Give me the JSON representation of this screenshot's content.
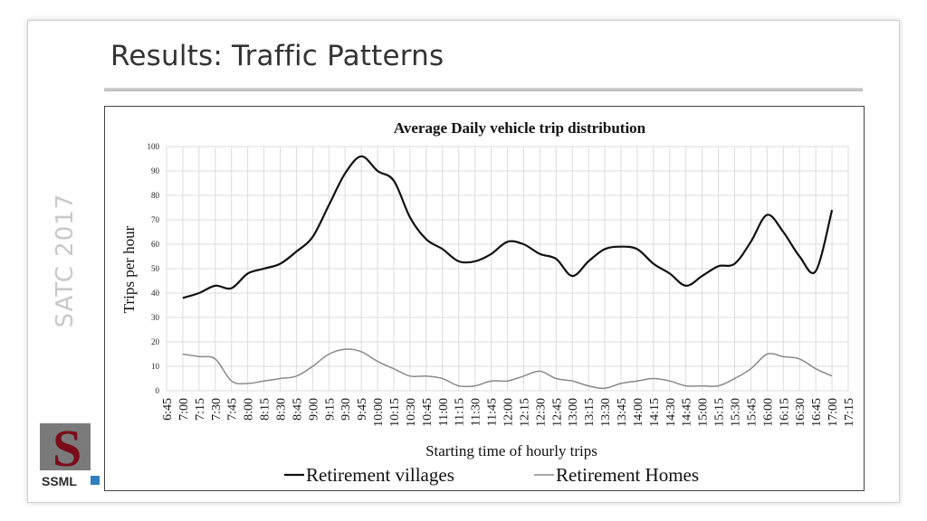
{
  "slide": {
    "title": "Results: Traffic Patterns",
    "side_label": "SATC 2017",
    "logo_text": "SSML"
  },
  "colors": {
    "series_villages": "#111111",
    "series_homes": "#8a8a8a",
    "grid": "#dcdcdc"
  },
  "chart_data": {
    "type": "line",
    "title": "Average Daily vehicle trip distribution",
    "xlabel": "Starting time of hourly trips",
    "ylabel": "Trips per hour",
    "ylim": [
      0,
      100
    ],
    "yticks": [
      0,
      10,
      20,
      30,
      40,
      50,
      60,
      70,
      80,
      90,
      100
    ],
    "grid": true,
    "legend_position": "bottom",
    "categories": [
      "6:45",
      "7:00",
      "7:15",
      "7:30",
      "7:45",
      "8:00",
      "8:15",
      "8:30",
      "8:45",
      "9:00",
      "9:15",
      "9:30",
      "9:45",
      "10:00",
      "10:15",
      "10:30",
      "10:45",
      "11:00",
      "11:15",
      "11:30",
      "11:45",
      "12:00",
      "12:15",
      "12:30",
      "12:45",
      "13:00",
      "13:15",
      "13:30",
      "13:45",
      "14:00",
      "14:15",
      "14:30",
      "14:45",
      "15:00",
      "15:15",
      "15:30",
      "15:45",
      "16:00",
      "16:15",
      "16:30",
      "16:45",
      "17:00",
      "17:15"
    ],
    "series": [
      {
        "name": "Retirement villages",
        "values": [
          null,
          38,
          40,
          43,
          42,
          48,
          50,
          52,
          57,
          63,
          76,
          89,
          96,
          90,
          86,
          71,
          62,
          58,
          53,
          53,
          56,
          61,
          60,
          56,
          54,
          47,
          53,
          58,
          59,
          58,
          52,
          48,
          43,
          47,
          51,
          52,
          61,
          72,
          65,
          55,
          49,
          74,
          null
        ]
      },
      {
        "name": "Retirement Homes",
        "values": [
          null,
          15,
          14,
          13,
          4,
          3,
          4,
          5,
          6,
          10,
          15,
          17,
          16,
          12,
          9,
          6,
          6,
          5,
          2,
          2,
          4,
          4,
          6,
          8,
          5,
          4,
          2,
          1,
          3,
          4,
          5,
          4,
          2,
          2,
          2,
          5,
          9,
          15,
          14,
          13,
          9,
          6,
          null
        ]
      }
    ]
  }
}
